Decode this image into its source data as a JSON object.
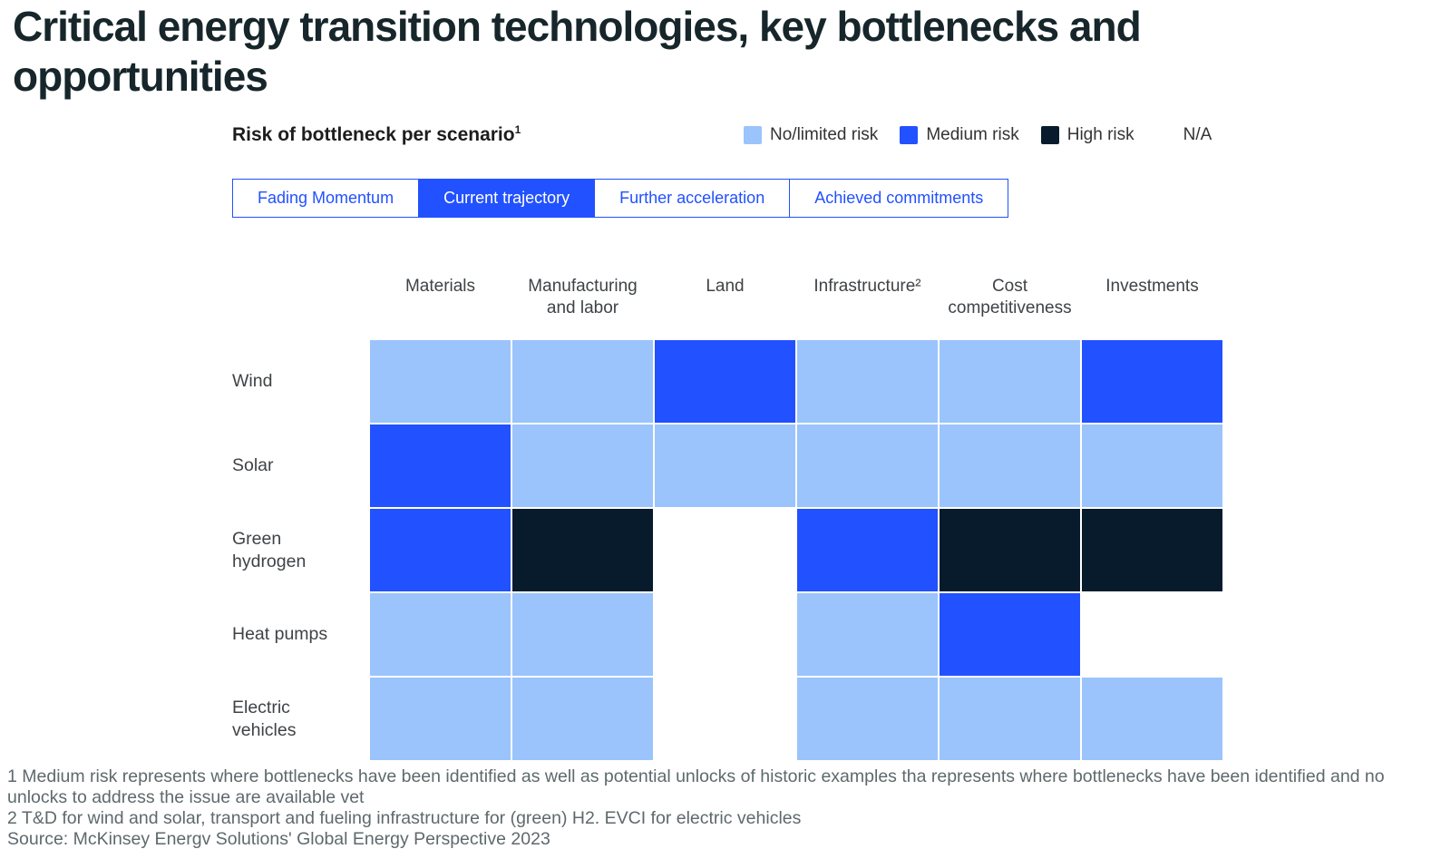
{
  "title": "Critical energy transition technologies, key bottlenecks and opportunities",
  "subtitle": {
    "text": "Risk of bottleneck per scenario",
    "sup": "1"
  },
  "legend": {
    "items": [
      {
        "label": "No/limited risk",
        "color": "#9AC4FB",
        "icon": "no-limited-risk-swatch-icon"
      },
      {
        "label": "Medium risk",
        "color": "#2251FF",
        "icon": "medium-risk-swatch-icon"
      },
      {
        "label": "High risk",
        "color": "#081B2C",
        "icon": "high-risk-swatch-icon"
      },
      {
        "label": "N/A",
        "color": null,
        "icon": null
      }
    ]
  },
  "tabs": [
    {
      "label": "Fading Momentum",
      "active": false
    },
    {
      "label": "Current trajectory",
      "active": true
    },
    {
      "label": "Further acceleration",
      "active": false
    },
    {
      "label": "Achieved commitments",
      "active": false
    }
  ],
  "chart_data": {
    "type": "heatmap",
    "title": "Risk of bottleneck per scenario",
    "selected_scenario": "Current trajectory",
    "columns": [
      "Materials",
      "Manufacturing and labor",
      "Land",
      "Infrastructure²",
      "Cost competitiveness",
      "Investments"
    ],
    "rows": [
      "Wind",
      "Solar",
      "Green hydrogen",
      "Heat pumps",
      "Electric vehicles"
    ],
    "values": [
      [
        "no_limited",
        "no_limited",
        "medium",
        "no_limited",
        "no_limited",
        "medium"
      ],
      [
        "medium",
        "no_limited",
        "no_limited",
        "no_limited",
        "no_limited",
        "no_limited"
      ],
      [
        "medium",
        "high",
        "na",
        "medium",
        "high",
        "high"
      ],
      [
        "no_limited",
        "no_limited",
        "na",
        "no_limited",
        "medium",
        "na"
      ],
      [
        "no_limited",
        "no_limited",
        "na",
        "no_limited",
        "no_limited",
        "no_limited"
      ]
    ],
    "value_labels": {
      "no_limited": "No/limited risk",
      "medium": "Medium risk",
      "high": "High risk",
      "na": "N/A"
    },
    "value_colors": {
      "no_limited": "#9AC4FB",
      "medium": "#2251FF",
      "high": "#081B2C",
      "na": "#FFFFFF"
    },
    "legend_position": "top-right",
    "grid": false
  },
  "footnotes": [
    "1 Medium risk represents where bottlenecks have been identified as well as potential unlocks of historic examples tha represents where bottlenecks have been identified and no unlocks to address the issue are available vet",
    "2 T&D for wind and solar, transport and fueling infrastructure for (green) H2. EVCI for electric vehicles",
    "Source: McKinsey Energv Solutions' Global Energy Perspective 2023"
  ],
  "colors": {
    "accent_blue": "#2251FF",
    "light_blue": "#9AC4FB",
    "dark_navy": "#081B2C",
    "title_text": "#16262A",
    "label_text": "#3F4346",
    "footnote_text": "#5E696C"
  }
}
